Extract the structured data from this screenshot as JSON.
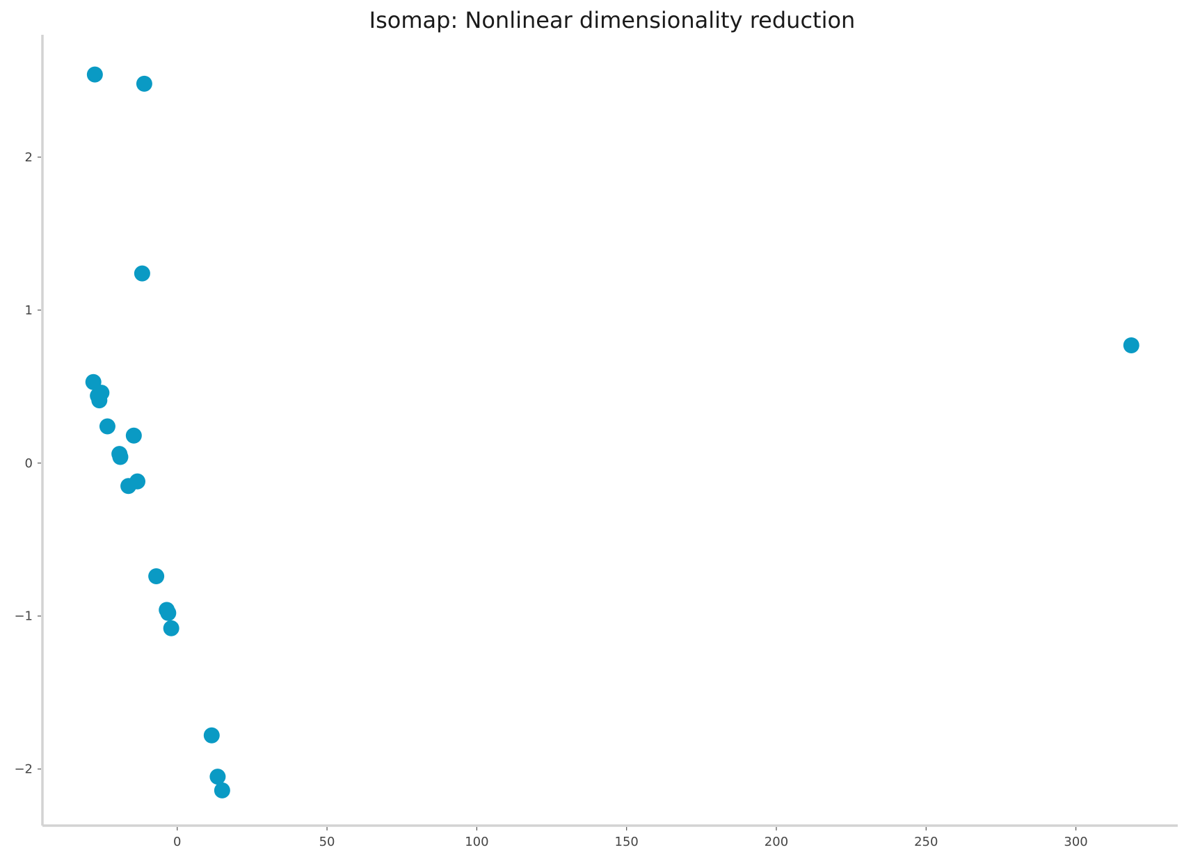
{
  "chart_data": {
    "type": "scatter",
    "title": "Isomap: Nonlinear dimensionality reduction",
    "xlabel": "",
    "ylabel": "",
    "xlim": [
      -45,
      334
    ],
    "ylim": [
      -2.37,
      2.8
    ],
    "xticks": [
      {
        "value": 0,
        "label": "0"
      },
      {
        "value": 50,
        "label": "50"
      },
      {
        "value": 100,
        "label": "100"
      },
      {
        "value": 150,
        "label": "150"
      },
      {
        "value": 200,
        "label": "200"
      },
      {
        "value": 250,
        "label": "250"
      },
      {
        "value": 300,
        "label": "300"
      }
    ],
    "yticks": [
      {
        "value": 2,
        "label": "2"
      },
      {
        "value": 1,
        "label": "1"
      },
      {
        "value": 0,
        "label": "0"
      },
      {
        "value": -1,
        "label": "−1"
      },
      {
        "value": -2,
        "label": "−2"
      }
    ],
    "grid": false,
    "color": "#0a9ac4",
    "points": [
      {
        "x": -27.5,
        "y": 2.54
      },
      {
        "x": -11,
        "y": 2.48
      },
      {
        "x": -11.7,
        "y": 1.24
      },
      {
        "x": 318.5,
        "y": 0.77
      },
      {
        "x": -28,
        "y": 0.53
      },
      {
        "x": -26.5,
        "y": 0.44
      },
      {
        "x": -25.3,
        "y": 0.46
      },
      {
        "x": -26,
        "y": 0.41
      },
      {
        "x": -23.3,
        "y": 0.24
      },
      {
        "x": -14.5,
        "y": 0.18
      },
      {
        "x": -19.3,
        "y": 0.06
      },
      {
        "x": -19,
        "y": 0.04
      },
      {
        "x": -16.3,
        "y": -0.15
      },
      {
        "x": -13.3,
        "y": -0.12
      },
      {
        "x": -7,
        "y": -0.74
      },
      {
        "x": -3.5,
        "y": -0.96
      },
      {
        "x": -3,
        "y": -0.98
      },
      {
        "x": -2,
        "y": -1.08
      },
      {
        "x": 11.5,
        "y": -1.78
      },
      {
        "x": 13.5,
        "y": -2.05
      },
      {
        "x": 15,
        "y": -2.14
      }
    ]
  }
}
